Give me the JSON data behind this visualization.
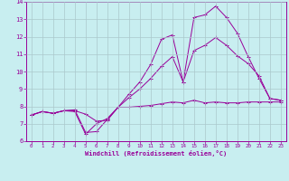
{
  "xlabel": "Windchill (Refroidissement éolien,°C)",
  "xlim": [
    -0.5,
    23.5
  ],
  "ylim": [
    6,
    14
  ],
  "xticks": [
    0,
    1,
    2,
    3,
    4,
    5,
    6,
    7,
    8,
    9,
    10,
    11,
    12,
    13,
    14,
    15,
    16,
    17,
    18,
    19,
    20,
    21,
    22,
    23
  ],
  "yticks": [
    6,
    7,
    8,
    9,
    10,
    11,
    12,
    13,
    14
  ],
  "bg_color": "#c8eef0",
  "line_color": "#990099",
  "grid_color": "#aac8cc",
  "line1_y": [
    7.5,
    7.7,
    7.6,
    7.75,
    7.7,
    6.4,
    7.0,
    7.3,
    7.95,
    7.95,
    8.0,
    8.05,
    8.15,
    8.25,
    8.2,
    8.35,
    8.2,
    8.25,
    8.2,
    8.2,
    8.25,
    8.25,
    8.25,
    8.25
  ],
  "line2_y": [
    7.5,
    7.7,
    7.6,
    7.75,
    7.8,
    6.5,
    6.55,
    7.25,
    7.95,
    8.7,
    9.4,
    10.4,
    11.85,
    12.1,
    9.4,
    13.1,
    13.25,
    13.75,
    13.1,
    12.2,
    10.85,
    9.6,
    8.45,
    8.35
  ],
  "line3_y": [
    7.5,
    7.7,
    7.6,
    7.75,
    7.75,
    7.55,
    7.15,
    7.2,
    7.95,
    8.5,
    9.0,
    9.6,
    10.3,
    10.85,
    9.4,
    11.2,
    11.5,
    11.95,
    11.5,
    10.9,
    10.45,
    9.75,
    8.45,
    8.35
  ]
}
